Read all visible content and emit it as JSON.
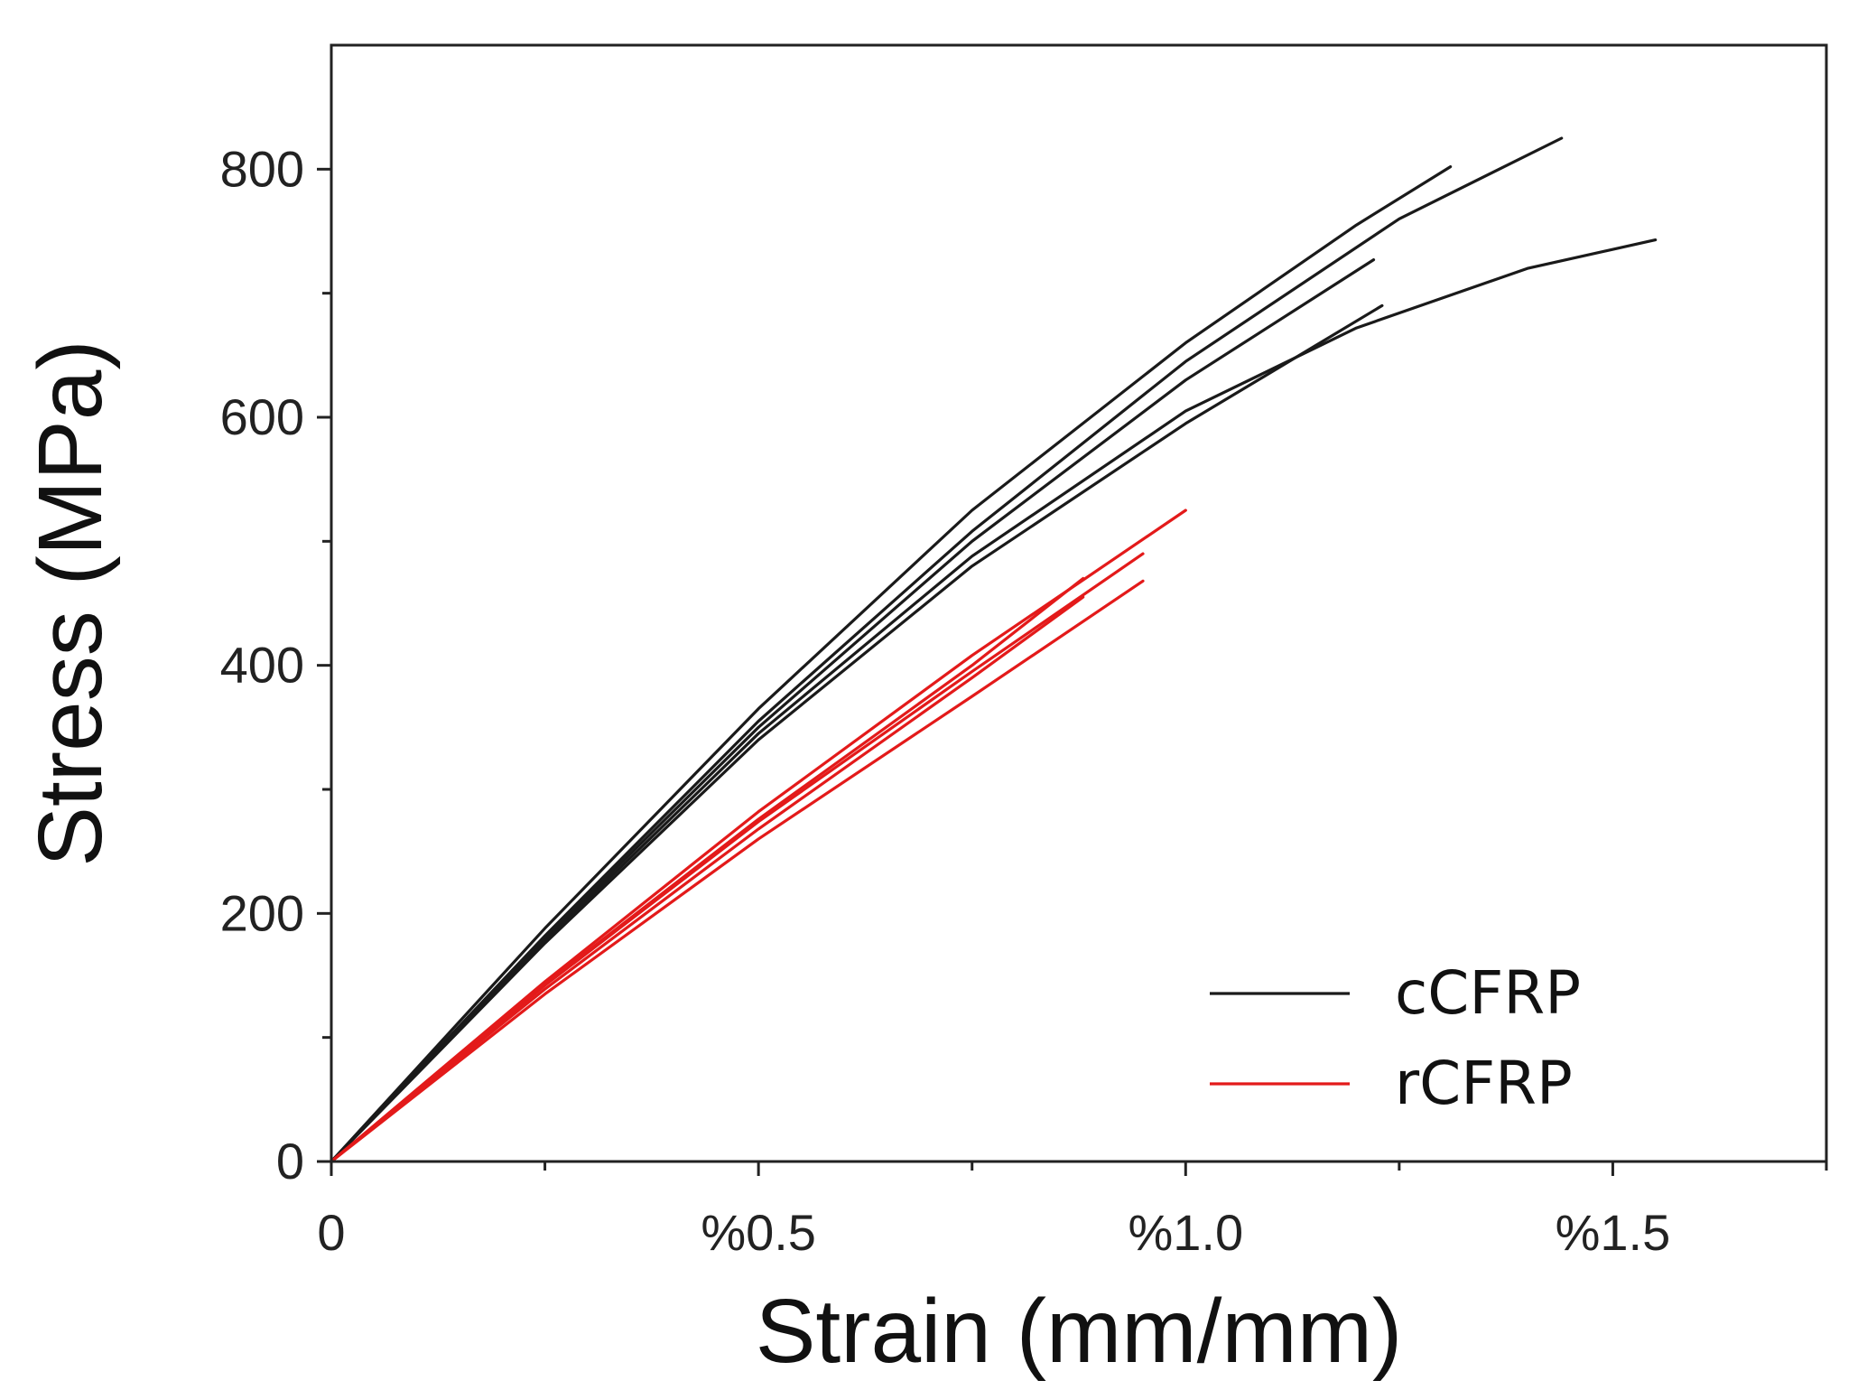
{
  "chart_data": {
    "type": "line",
    "title": "",
    "xlabel": "Strain (mm/mm)",
    "ylabel": "Stress (MPa)",
    "xlim": [
      0,
      1.75
    ],
    "ylim": [
      0,
      900
    ],
    "x_ticks": [
      {
        "value": 0,
        "label": "0"
      },
      {
        "value": 0.5,
        "label": "%0.5"
      },
      {
        "value": 1.0,
        "label": "%1.0"
      },
      {
        "value": 1.5,
        "label": "%1.5"
      }
    ],
    "x_minor_ticks": [
      0.25,
      0.75,
      1.25,
      1.75
    ],
    "y_ticks": [
      {
        "value": 0,
        "label": "0"
      },
      {
        "value": 200,
        "label": "200"
      },
      {
        "value": 400,
        "label": "400"
      },
      {
        "value": 600,
        "label": "600"
      },
      {
        "value": 800,
        "label": "800"
      }
    ],
    "y_minor_ticks": [
      100,
      300,
      500,
      700
    ],
    "grid": false,
    "legend": {
      "position": "bottom-right",
      "entries": [
        {
          "label": "cCFRP",
          "color": "#1a1a1a"
        },
        {
          "label": "rCFRP",
          "color": "#e31a1a"
        }
      ]
    },
    "series": [
      {
        "name": "cCFRP",
        "color": "#1a1a1a",
        "x": [
          0,
          0.25,
          0.5,
          0.75,
          1.0,
          1.2,
          1.31
        ],
        "y": [
          0,
          188,
          365,
          525,
          660,
          755,
          802
        ]
      },
      {
        "name": "cCFRP",
        "color": "#1a1a1a",
        "x": [
          0,
          0.25,
          0.5,
          0.75,
          1.0,
          1.25,
          1.44
        ],
        "y": [
          0,
          182,
          355,
          508,
          645,
          760,
          825
        ]
      },
      {
        "name": "cCFRP",
        "color": "#1a1a1a",
        "x": [
          0,
          0.25,
          0.5,
          0.75,
          1.0,
          1.22
        ],
        "y": [
          0,
          180,
          350,
          500,
          630,
          727
        ]
      },
      {
        "name": "cCFRP",
        "color": "#1a1a1a",
        "x": [
          0,
          0.25,
          0.5,
          0.75,
          1.0,
          1.2,
          1.4,
          1.55
        ],
        "y": [
          0,
          178,
          345,
          488,
          605,
          672,
          720,
          743
        ]
      },
      {
        "name": "cCFRP",
        "color": "#1a1a1a",
        "x": [
          0,
          0.25,
          0.5,
          0.75,
          1.0,
          1.23
        ],
        "y": [
          0,
          176,
          340,
          480,
          595,
          690
        ]
      },
      {
        "name": "rCFRP",
        "color": "#e31a1a",
        "x": [
          0,
          0.25,
          0.5,
          0.75,
          1.0
        ],
        "y": [
          0,
          145,
          282,
          408,
          525
        ]
      },
      {
        "name": "rCFRP",
        "color": "#e31a1a",
        "x": [
          0,
          0.25,
          0.5,
          0.75,
          0.95
        ],
        "y": [
          0,
          142,
          274,
          395,
          490
        ]
      },
      {
        "name": "rCFRP",
        "color": "#e31a1a",
        "x": [
          0,
          0.25,
          0.5,
          0.75,
          0.88
        ],
        "y": [
          0,
          143,
          276,
          400,
          470
        ]
      },
      {
        "name": "rCFRP",
        "color": "#e31a1a",
        "x": [
          0,
          0.25,
          0.5,
          0.75,
          0.88
        ],
        "y": [
          0,
          139,
          268,
          390,
          455
        ]
      },
      {
        "name": "rCFRP",
        "color": "#e31a1a",
        "x": [
          0,
          0.25,
          0.5,
          0.75,
          0.95
        ],
        "y": [
          0,
          135,
          260,
          375,
          468
        ]
      }
    ]
  }
}
